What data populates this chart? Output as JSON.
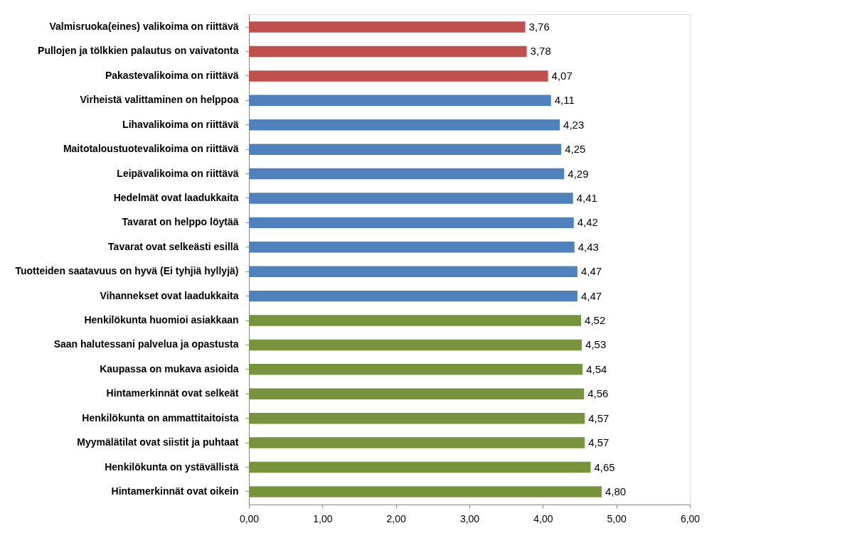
{
  "chart_data": {
    "type": "bar",
    "orientation": "horizontal",
    "categories": [
      "Valmisruoka(eines) valikoima on riittävä",
      "Pullojen ja tölkkien palautus on vaivatonta",
      "Pakastevalikoima on riittävä",
      "Virheistä valittaminen on helppoa",
      "Lihavalikoima on riittävä",
      "Maitotaloustuotevalikoima on riittävä",
      "Leipävalikoima on riittävä",
      "Hedelmät ovat laadukkaita",
      "Tavarat on helppo löytää",
      "Tavarat ovat selkeästi esillä",
      "Tuotteiden saatavuus on hyvä (Ei tyhjiä hyllyjä)",
      "Vihannekset ovat laadukkaita",
      "Henkilökunta huomioi asiakkaan",
      "Saan halutessani palvelua ja opastusta",
      "Kaupassa on mukava asioida",
      "Hintamerkinnät ovat selkeät",
      "Henkilökunta on ammattitaitoista",
      "Myymälätilat ovat siistit ja puhtaat",
      "Henkilökunta on ystävällistä",
      "Hintamerkinnät ovat oikein"
    ],
    "values": [
      3.76,
      3.78,
      4.07,
      4.11,
      4.23,
      4.25,
      4.29,
      4.41,
      4.42,
      4.43,
      4.47,
      4.47,
      4.52,
      4.53,
      4.54,
      4.56,
      4.57,
      4.57,
      4.65,
      4.8
    ],
    "value_labels": [
      "3,76",
      "3,78",
      "4,07",
      "4,11",
      "4,23",
      "4,25",
      "4,29",
      "4,41",
      "4,42",
      "4,43",
      "4,47",
      "4,47",
      "4,52",
      "4,53",
      "4,54",
      "4,56",
      "4,57",
      "4,57",
      "4,65",
      "4,80"
    ],
    "colors": [
      "#c0504d",
      "#c0504d",
      "#c0504d",
      "#4f81bd",
      "#4f81bd",
      "#4f81bd",
      "#4f81bd",
      "#4f81bd",
      "#4f81bd",
      "#4f81bd",
      "#4f81bd",
      "#4f81bd",
      "#77933c",
      "#77933c",
      "#77933c",
      "#77933c",
      "#77933c",
      "#77933c",
      "#77933c",
      "#77933c"
    ],
    "xlim": [
      0,
      6
    ],
    "xticks": [
      {
        "value": 0,
        "label": "0,00"
      },
      {
        "value": 1,
        "label": "1,00"
      },
      {
        "value": 2,
        "label": "2,00"
      },
      {
        "value": 3,
        "label": "3,00"
      },
      {
        "value": 4,
        "label": "4,00"
      },
      {
        "value": 5,
        "label": "5,00"
      },
      {
        "value": 6,
        "label": "6,00"
      }
    ],
    "grid": false
  }
}
